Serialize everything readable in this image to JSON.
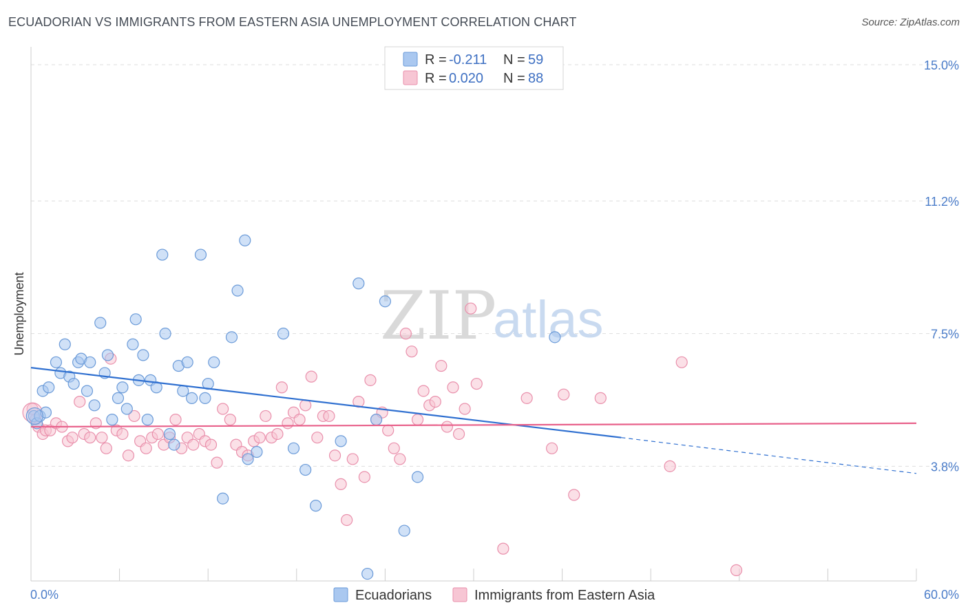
{
  "title": "ECUADORIAN VS IMMIGRANTS FROM EASTERN ASIA UNEMPLOYMENT CORRELATION CHART",
  "source": "Source: ZipAtlas.com",
  "watermark": {
    "zip": "ZIP",
    "atlas": "atlas"
  },
  "colors": {
    "blue_fill": "#aac8f0",
    "blue_stroke": "#6a9ad8",
    "blue_line": "#2e6fd0",
    "pink_fill": "#f7c6d4",
    "pink_stroke": "#e98fab",
    "pink_line": "#e8608a",
    "tick_label": "#4a7cc9",
    "grid": "#dddddd"
  },
  "legend": {
    "rows": [
      {
        "r_label": "R =",
        "r_value": "-0.211",
        "n_label": "N =",
        "n_value": "59"
      },
      {
        "r_label": "R =",
        "r_value": "0.020",
        "n_label": "N =",
        "n_value": "88"
      }
    ]
  },
  "bottom_legend": [
    "Ecuadorians",
    "Immigrants from Eastern Asia"
  ],
  "chart_data": {
    "type": "scatter",
    "title": "ECUADORIAN VS IMMIGRANTS FROM EASTERN ASIA UNEMPLOYMENT CORRELATION CHART",
    "xlabel": "",
    "ylabel": "Unemployment",
    "xlim": [
      0,
      60
    ],
    "ylim": [
      0.6,
      15.5
    ],
    "x_tick_labels": [
      "0.0%",
      "60.0%"
    ],
    "y_ticks": [
      3.8,
      7.5,
      11.2,
      15.0
    ],
    "y_tick_labels": [
      "3.8%",
      "7.5%",
      "11.2%",
      "15.0%"
    ],
    "grid": true,
    "legend_position": "top-center",
    "series": [
      {
        "name": "Ecuadorians",
        "points": [
          [
            0.2,
            5.2
          ],
          [
            0.4,
            5.0
          ],
          [
            0.6,
            5.2
          ],
          [
            0.8,
            5.9
          ],
          [
            1.0,
            5.3
          ],
          [
            1.2,
            6.0
          ],
          [
            1.7,
            6.7
          ],
          [
            2.0,
            6.4
          ],
          [
            2.3,
            7.2
          ],
          [
            2.6,
            6.3
          ],
          [
            2.9,
            6.1
          ],
          [
            3.2,
            6.7
          ],
          [
            3.4,
            6.8
          ],
          [
            3.8,
            5.9
          ],
          [
            4.0,
            6.7
          ],
          [
            4.3,
            5.5
          ],
          [
            4.7,
            7.8
          ],
          [
            5.0,
            6.4
          ],
          [
            5.2,
            6.9
          ],
          [
            5.5,
            5.1
          ],
          [
            5.9,
            5.7
          ],
          [
            6.2,
            6.0
          ],
          [
            6.5,
            5.4
          ],
          [
            6.9,
            7.2
          ],
          [
            7.1,
            7.9
          ],
          [
            7.3,
            6.2
          ],
          [
            7.6,
            6.9
          ],
          [
            7.9,
            5.1
          ],
          [
            8.1,
            6.2
          ],
          [
            8.5,
            6.0
          ],
          [
            8.9,
            9.7
          ],
          [
            9.1,
            7.5
          ],
          [
            9.4,
            4.7
          ],
          [
            9.7,
            4.4
          ],
          [
            10.0,
            6.6
          ],
          [
            10.3,
            5.9
          ],
          [
            10.6,
            6.7
          ],
          [
            10.9,
            5.7
          ],
          [
            11.5,
            9.7
          ],
          [
            11.8,
            5.7
          ],
          [
            12.0,
            6.1
          ],
          [
            12.4,
            6.7
          ],
          [
            13.0,
            2.9
          ],
          [
            13.6,
            7.4
          ],
          [
            14.0,
            8.7
          ],
          [
            14.5,
            10.1
          ],
          [
            14.7,
            4.0
          ],
          [
            15.3,
            4.2
          ],
          [
            17.1,
            7.5
          ],
          [
            17.8,
            4.3
          ],
          [
            18.6,
            3.7
          ],
          [
            19.3,
            2.7
          ],
          [
            21.0,
            4.5
          ],
          [
            22.2,
            8.9
          ],
          [
            22.8,
            0.8
          ],
          [
            23.4,
            5.1
          ],
          [
            24.0,
            8.4
          ],
          [
            25.3,
            2.0
          ],
          [
            26.2,
            3.5
          ],
          [
            35.5,
            7.4
          ]
        ]
      },
      {
        "name": "Immigrants from Eastern Asia",
        "points": [
          [
            0.3,
            5.1
          ],
          [
            0.5,
            4.9
          ],
          [
            0.8,
            4.7
          ],
          [
            1.0,
            4.8
          ],
          [
            1.3,
            4.8
          ],
          [
            1.7,
            5.0
          ],
          [
            2.1,
            4.9
          ],
          [
            2.5,
            4.5
          ],
          [
            2.8,
            4.6
          ],
          [
            3.3,
            5.6
          ],
          [
            3.6,
            4.7
          ],
          [
            4.0,
            4.6
          ],
          [
            4.4,
            5.0
          ],
          [
            4.8,
            4.6
          ],
          [
            5.1,
            4.3
          ],
          [
            5.4,
            6.8
          ],
          [
            5.8,
            4.8
          ],
          [
            6.2,
            4.7
          ],
          [
            6.6,
            4.1
          ],
          [
            7.0,
            5.2
          ],
          [
            7.4,
            4.5
          ],
          [
            7.8,
            4.3
          ],
          [
            8.2,
            4.6
          ],
          [
            8.6,
            4.7
          ],
          [
            9.0,
            4.4
          ],
          [
            9.4,
            4.6
          ],
          [
            9.8,
            5.1
          ],
          [
            10.2,
            4.3
          ],
          [
            10.6,
            4.6
          ],
          [
            11.0,
            4.4
          ],
          [
            11.4,
            4.7
          ],
          [
            11.8,
            4.5
          ],
          [
            12.2,
            4.4
          ],
          [
            12.6,
            3.9
          ],
          [
            13.0,
            5.4
          ],
          [
            13.5,
            5.1
          ],
          [
            13.9,
            4.4
          ],
          [
            14.3,
            4.2
          ],
          [
            14.7,
            4.1
          ],
          [
            15.1,
            4.5
          ],
          [
            15.5,
            4.6
          ],
          [
            15.9,
            5.2
          ],
          [
            16.3,
            4.6
          ],
          [
            16.7,
            4.7
          ],
          [
            17.0,
            6.0
          ],
          [
            17.4,
            5.0
          ],
          [
            17.8,
            5.3
          ],
          [
            18.2,
            5.1
          ],
          [
            18.6,
            5.5
          ],
          [
            19.0,
            6.3
          ],
          [
            19.4,
            4.6
          ],
          [
            19.8,
            5.2
          ],
          [
            20.2,
            5.2
          ],
          [
            20.6,
            4.1
          ],
          [
            21.0,
            3.3
          ],
          [
            21.4,
            2.3
          ],
          [
            21.8,
            4.0
          ],
          [
            22.2,
            5.6
          ],
          [
            22.6,
            3.5
          ],
          [
            23.0,
            6.2
          ],
          [
            23.4,
            5.1
          ],
          [
            23.8,
            5.3
          ],
          [
            24.2,
            4.8
          ],
          [
            24.6,
            4.3
          ],
          [
            25.0,
            4.0
          ],
          [
            25.4,
            7.5
          ],
          [
            25.8,
            7.0
          ],
          [
            26.2,
            5.1
          ],
          [
            26.6,
            5.9
          ],
          [
            27.0,
            5.5
          ],
          [
            27.4,
            5.6
          ],
          [
            27.8,
            6.6
          ],
          [
            28.2,
            4.9
          ],
          [
            28.6,
            6.0
          ],
          [
            29.0,
            4.7
          ],
          [
            29.4,
            5.4
          ],
          [
            29.8,
            8.2
          ],
          [
            30.2,
            6.1
          ],
          [
            32.0,
            1.5
          ],
          [
            33.6,
            5.7
          ],
          [
            35.3,
            4.3
          ],
          [
            36.1,
            5.8
          ],
          [
            36.8,
            3.0
          ],
          [
            38.6,
            5.7
          ],
          [
            43.3,
            3.8
          ],
          [
            44.1,
            6.7
          ],
          [
            47.8,
            0.9
          ],
          [
            0.1,
            5.4
          ]
        ]
      }
    ],
    "trend_lines": [
      {
        "series": "Ecuadorians",
        "x": [
          0,
          40
        ],
        "y": [
          6.55,
          4.6
        ],
        "dashed_extension": {
          "x": [
            40,
            60
          ],
          "y": [
            4.6,
            3.6
          ]
        }
      },
      {
        "series": "Immigrants from Eastern Asia",
        "x": [
          0,
          60
        ],
        "y": [
          4.9,
          5.0
        ]
      }
    ]
  }
}
